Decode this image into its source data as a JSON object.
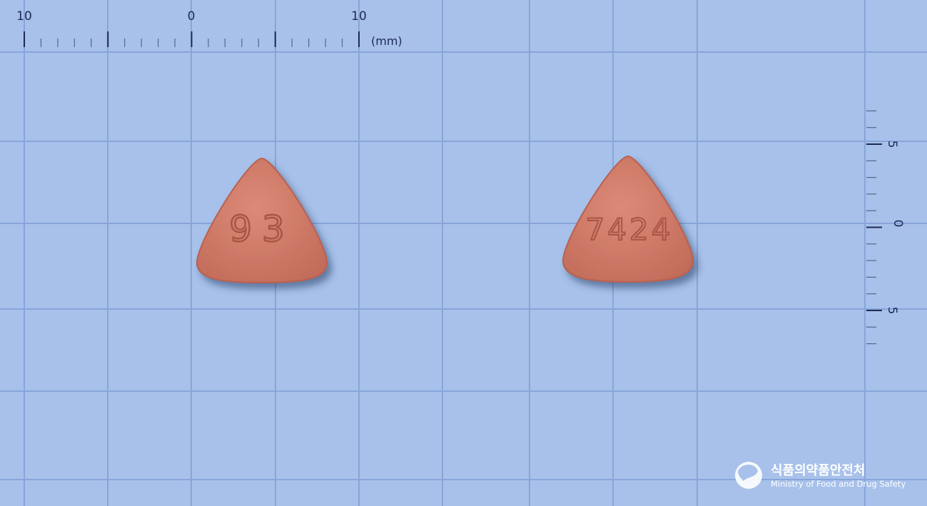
{
  "ruler_top": {
    "labels": [
      "10",
      "0",
      "10"
    ],
    "unit": "(mm)"
  },
  "ruler_side": {
    "labels": [
      "5",
      "0",
      "5"
    ]
  },
  "pills": [
    {
      "imprint": "93"
    },
    {
      "imprint": "7424"
    }
  ],
  "logo": {
    "korean": "식품의약품안전처",
    "english": "Ministry of Food and Drug Safety"
  }
}
